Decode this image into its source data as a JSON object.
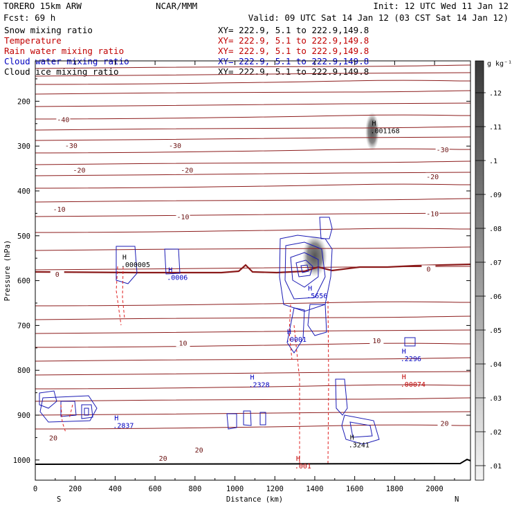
{
  "header": {
    "model": "TORERO  15km ARW",
    "org": "NCAR/MMM",
    "init": "Init: 12 UTC Wed 11 Jan 12",
    "fcst": "Fcst:   69 h",
    "valid": "Valid: 09 UTC Sat 14 Jan 12 (03 CST Sat 14 Jan 12)",
    "xy_text": "XY= 222.9,  5.1 to 222.9,149.8"
  },
  "fields": [
    {
      "name": "Snow mixing ratio",
      "color": "#000000"
    },
    {
      "name": "Temperature",
      "color": "#c00000"
    },
    {
      "name": "Rain water mixing ratio",
      "color": "#c00000"
    },
    {
      "name": "Cloud water mixing ratio",
      "color": "#0000c0"
    },
    {
      "name": "Cloud ice mixing ratio",
      "color": "#000000"
    }
  ],
  "colorbar": {
    "unit": "g kg⁻¹",
    "levels": [
      ".12",
      ".11",
      ".1",
      ".09",
      ".08",
      ".07",
      ".06",
      ".05",
      ".04",
      ".03",
      ".02",
      ".01"
    ]
  },
  "chart_data": {
    "type": "cross-section",
    "xlabel": "Distance (km)",
    "ylabel": "Pressure (hPa)",
    "x_ticks": [
      "0",
      "200",
      "400",
      "600",
      "800",
      "1000",
      "1200",
      "1400",
      "1600",
      "1800",
      "2000"
    ],
    "y_ticks": [
      "200",
      "300",
      "400",
      "500",
      "600",
      "700",
      "800",
      "900",
      "1000"
    ],
    "xlim": [
      0,
      2180
    ],
    "ylim": [
      1045,
      110
    ],
    "y_scale": "linear",
    "endpoint_left": "S",
    "endpoint_right": "N",
    "temperature_contours": [
      {
        "label": "-40",
        "x": 140,
        "p": 245
      },
      {
        "label": "-30",
        "x": 180,
        "p": 303
      },
      {
        "label": "-30",
        "x": 700,
        "p": 303
      },
      {
        "label": "-30",
        "x": 2040,
        "p": 312
      },
      {
        "label": "-20",
        "x": 220,
        "p": 358
      },
      {
        "label": "-20",
        "x": 760,
        "p": 358
      },
      {
        "label": "-20",
        "x": 1990,
        "p": 372
      },
      {
        "label": "-10",
        "x": 120,
        "p": 445
      },
      {
        "label": "-10",
        "x": 740,
        "p": 462
      },
      {
        "label": "-10",
        "x": 1990,
        "p": 455
      },
      {
        "label": "0",
        "x": 110,
        "p": 590
      },
      {
        "label": "0",
        "x": 1970,
        "p": 578
      },
      {
        "label": "10",
        "x": 740,
        "p": 743
      },
      {
        "label": "10",
        "x": 1710,
        "p": 738
      },
      {
        "label": "20",
        "x": 90,
        "p": 955
      },
      {
        "label": "20",
        "x": 820,
        "p": 982
      },
      {
        "label": "20",
        "x": 640,
        "p": 1000
      },
      {
        "label": "20",
        "x": 2050,
        "p": 922
      }
    ],
    "maxima": [
      {
        "label": ".001168",
        "x": 1700,
        "p": 270,
        "color": "#000000"
      },
      {
        "label": ".000005",
        "x": 450,
        "p": 568,
        "color": "#000000"
      },
      {
        "label": ".0006",
        "x": 680,
        "p": 597,
        "color": "#0000c0"
      },
      {
        "label": ".5656",
        "x": 1380,
        "p": 638,
        "color": "#0000c0"
      },
      {
        "label": ".0001",
        "x": 1275,
        "p": 735,
        "color": "#0000c0"
      },
      {
        "label": ".2328",
        "x": 1090,
        "p": 836,
        "color": "#0000c0"
      },
      {
        "label": ".2296",
        "x": 1850,
        "p": 778,
        "color": "#0000c0"
      },
      {
        "label": ".00074",
        "x": 1850,
        "p": 835,
        "color": "#c00000"
      },
      {
        "label": ".2837",
        "x": 410,
        "p": 927,
        "color": "#0000c0"
      },
      {
        "label": ".3241",
        "x": 1590,
        "p": 970,
        "color": "#000000"
      },
      {
        "label": ".001",
        "x": 1320,
        "p": 1017,
        "color": "#c00000"
      }
    ]
  }
}
